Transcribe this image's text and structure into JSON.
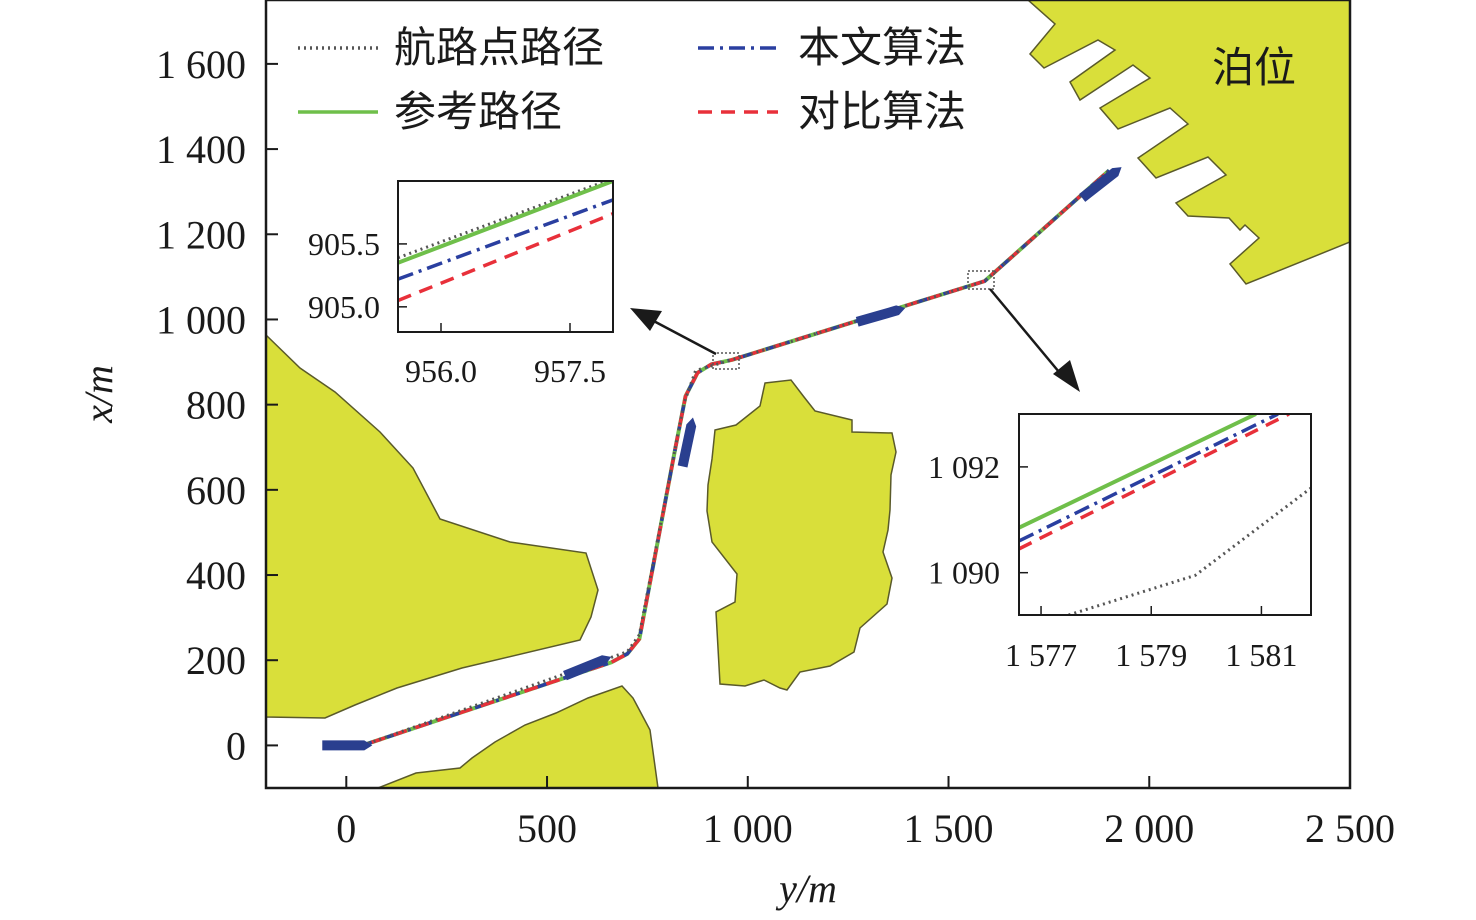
{
  "chart_data": {
    "type": "line",
    "xlabel": "y/m",
    "ylabel": "x/m",
    "xlim": [
      -200,
      2500
    ],
    "ylim": [
      -100,
      1750
    ],
    "x_ticks": [
      "0",
      "500",
      "1 000",
      "1 500",
      "2 000",
      "2 500"
    ],
    "x_tick_values": [
      0,
      500,
      1000,
      1500,
      2000,
      2500
    ],
    "y_ticks": [
      "0",
      "200",
      "400",
      "600",
      "800",
      "1 000",
      "1 200",
      "1 400",
      "1 600"
    ],
    "y_tick_values": [
      0,
      200,
      400,
      600,
      800,
      1000,
      1200,
      1400,
      1600
    ],
    "legend_position": "top",
    "colors": {
      "land": "#d9df3a",
      "land_edge": "#5a5a2a",
      "waypoint": "#555555",
      "reference": "#6fbf4a",
      "proposed": "#2a3fa0",
      "comparison": "#e8303a",
      "ship": "#2a3f8f"
    },
    "series": [
      {
        "name": "航路点路径",
        "style": "dotted",
        "x": [
          -50,
          40,
          700,
          730,
          840,
          870,
          960,
          1590,
          1900
        ],
        "y": [
          0,
          0,
          220,
          260,
          800,
          880,
          905,
          1090,
          1350
        ]
      },
      {
        "name": "参考路径",
        "style": "solid",
        "x": [
          -50,
          40,
          660,
          700,
          730,
          820,
          845,
          875,
          910,
          960,
          1590,
          1900
        ],
        "y": [
          0,
          0,
          195,
          215,
          250,
          700,
          820,
          875,
          895,
          905,
          1090,
          1350
        ]
      },
      {
        "name": "本文算法",
        "style": "dashdot",
        "x": [
          -50,
          40,
          660,
          700,
          730,
          820,
          845,
          875,
          910,
          960,
          1590,
          1900
        ],
        "y": [
          0,
          0,
          195,
          215,
          250,
          700,
          820,
          875,
          895,
          905,
          1090,
          1350
        ]
      },
      {
        "name": "对比算法",
        "style": "dashed",
        "x": [
          -50,
          40,
          660,
          700,
          730,
          820,
          845,
          875,
          910,
          960,
          1590,
          1900
        ],
        "y": [
          0,
          0,
          195,
          215,
          250,
          700,
          820,
          875,
          895,
          905,
          1090,
          1350
        ]
      }
    ],
    "ship_positions": [
      {
        "y": 0,
        "x": 0,
        "angle": 0
      },
      {
        "y": 600,
        "x": 185,
        "angle": 22
      },
      {
        "y": 850,
        "x": 710,
        "angle": 78
      },
      {
        "y": 1330,
        "x": 1010,
        "angle": 16
      },
      {
        "y": 1880,
        "x": 1320,
        "angle": 38
      }
    ],
    "annotations": [
      {
        "text": "泊位"
      }
    ],
    "insets": [
      {
        "focus": {
          "y": 960,
          "x": 905
        },
        "x_ticks": [
          "956.0",
          "957.5"
        ],
        "x_tick_values": [
          956.0,
          957.5
        ],
        "y_ticks": [
          "905.0",
          "905.5"
        ],
        "y_tick_values": [
          905.0,
          905.5
        ],
        "xlim": [
          955.5,
          958.0
        ],
        "ylim": [
          904.8,
          906.0
        ],
        "series": [
          {
            "name": "航路点路径",
            "x": [
              955.5,
              958.0
            ],
            "y": [
              905.39,
              906.02
            ]
          },
          {
            "name": "参考路径",
            "x": [
              955.5,
              958.0
            ],
            "y": [
              905.35,
              906.0
            ]
          },
          {
            "name": "本文算法",
            "x": [
              955.5,
              958.0
            ],
            "y": [
              905.22,
              905.85
            ]
          },
          {
            "name": "对比算法",
            "x": [
              955.5,
              958.0
            ],
            "y": [
              905.05,
              905.74
            ]
          }
        ]
      },
      {
        "focus": {
          "y": 1590,
          "x": 1090
        },
        "x_ticks": [
          "1 577",
          "1 579",
          "1 581"
        ],
        "x_tick_values": [
          1577,
          1579,
          1581
        ],
        "y_ticks": [
          "1 090",
          "1 092"
        ],
        "y_tick_values": [
          1090,
          1092
        ],
        "xlim": [
          1576.6,
          1581.9
        ],
        "ylim": [
          1089.2,
          1093.0
        ],
        "series": [
          {
            "name": "航路点路径",
            "x": [
              1577.5,
              1579.8,
              1581.9
            ],
            "y": [
              1089.2,
              1089.95,
              1091.6
            ]
          },
          {
            "name": "参考路径",
            "x": [
              1576.6,
              1580.9
            ],
            "y": [
              1090.85,
              1093.0
            ]
          },
          {
            "name": "本文算法",
            "x": [
              1576.6,
              1581.3
            ],
            "y": [
              1090.6,
              1093.0
            ]
          },
          {
            "name": "对比算法",
            "x": [
              1576.6,
              1581.5
            ],
            "y": [
              1090.45,
              1093.0
            ]
          }
        ]
      }
    ]
  }
}
